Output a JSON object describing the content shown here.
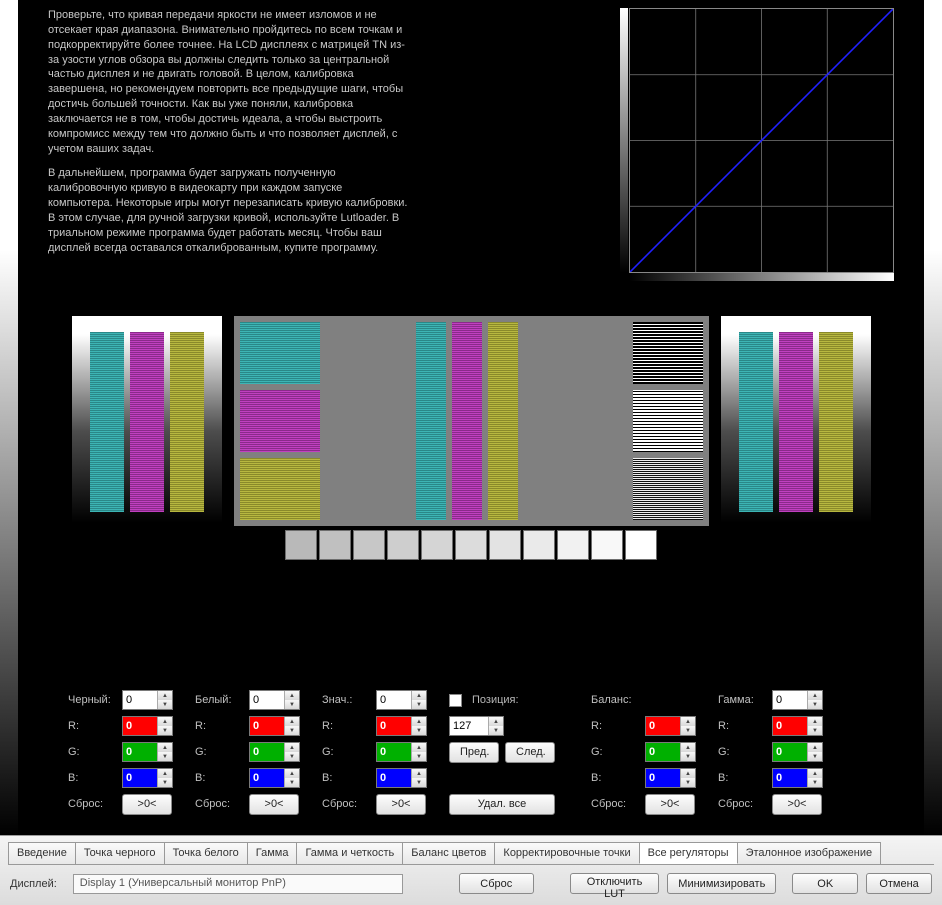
{
  "instructions": {
    "p1": "Проверьте, что кривая передачи яркости не имеет изломов и не отсекает края диапазона. Внимательно пройдитесь по всем точкам и подкорректируйте более точнее. На LCD дисплеях с матрицей TN из-за узости углов обзора вы должны следить только за центральной частью дисплея и не двигать головой. В целом, калибровка завершена, но рекомендуем повторить все предыдущие шаги, чтобы достичь большей точности. Как вы уже поняли, калибровка заключается не в том, чтобы достичь идеала, а чтобы выстроить компромисс между тем что должно быть и что позволяет дисплей, с учетом ваших задач.",
    "p2": "В дальнейшем, программа будет загружать полученную калибровочную кривую в видеокарту при каждом запуске компьютера. Некоторые игры могут перезаписать кривую калибровки. В этом случае, для ручной загрузки кривой, используйте Lutloader. В триальном режиме программа будет работать месяц. Чтобы ваш дисплей всегда оставался откалиброванным, купите программу."
  },
  "curve": {
    "grid_divisions": 4,
    "line_color": "#2020ff",
    "grid_color": "#787878",
    "border_color": "#888888",
    "bg_color": "#000000"
  },
  "gray_squares": {
    "count": 11,
    "start": "#b9b9b9",
    "end": "#ffffff"
  },
  "labels": {
    "black": "Черный:",
    "white": "Белый:",
    "value": "Знач.:",
    "position": "Позиция:",
    "balance": "Баланс:",
    "gamma": "Гамма:",
    "r": "R:",
    "g": "G:",
    "b": "B:",
    "reset": "Сброс:",
    "reset_btn": ">0<",
    "prev": "Пред.",
    "next": "След.",
    "delete_all": "Удал. все"
  },
  "values": {
    "black": {
      "main": "0",
      "r": "0",
      "g": "0",
      "b": "0"
    },
    "white": {
      "main": "0",
      "r": "0",
      "g": "0",
      "b": "0"
    },
    "value": {
      "main": "0",
      "r": "0",
      "g": "0",
      "b": "0"
    },
    "position": "127",
    "balance": {
      "r": "0",
      "g": "0",
      "b": "0"
    },
    "gamma": {
      "main": "0",
      "r": "0",
      "g": "0",
      "b": "0"
    }
  },
  "tabs": [
    {
      "label": "Введение",
      "active": false
    },
    {
      "label": "Точка черного",
      "active": false
    },
    {
      "label": "Точка белого",
      "active": false
    },
    {
      "label": "Гамма",
      "active": false
    },
    {
      "label": "Гамма и четкость",
      "active": false
    },
    {
      "label": "Баланс цветов",
      "active": false
    },
    {
      "label": "Корректировочные точки",
      "active": false
    },
    {
      "label": "Все регуляторы",
      "active": true
    },
    {
      "label": "Эталонное изображение",
      "active": false
    }
  ],
  "bottom": {
    "display_label": "Дисплей:",
    "display_value": "Display 1 (Универсальный монитор PnP)",
    "reset": "Сброс",
    "disable_lut": "Отключить LUT",
    "minimize": "Минимизировать",
    "ok": "OK",
    "cancel": "Отмена"
  },
  "colors": {
    "red": "#ff0000",
    "green": "#00b000",
    "blue": "#0000ff",
    "cyan_stripe": "#3db5b5",
    "magenta_stripe": "#c040c0",
    "yellow_stripe": "#b8b840"
  }
}
